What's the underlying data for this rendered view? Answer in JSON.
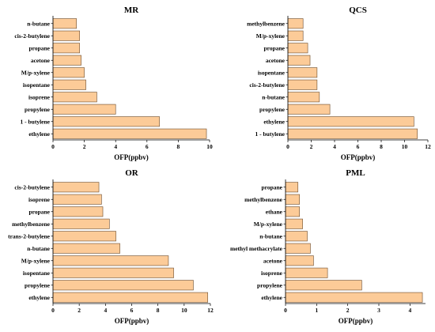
{
  "colors": {
    "bar_fill": "#FCCB98",
    "bar_stroke": "#6b4a2a",
    "axis": "#000000"
  },
  "chart_data": [
    {
      "type": "bar",
      "orientation": "horizontal",
      "title": "MR",
      "xlabel": "OFP(ppbv)",
      "ylabel": "",
      "categories": [
        "ethylene",
        "1 - butylene",
        "propylene",
        "isoprene",
        "isopentane",
        "M/p-xylene",
        "acetone",
        "propane",
        "cis-2-butylene",
        "n-butane"
      ],
      "values": [
        9.8,
        6.8,
        4.0,
        2.8,
        2.1,
        2.0,
        1.8,
        1.7,
        1.7,
        1.5
      ],
      "xlim": [
        0,
        10
      ],
      "xticks": [
        0,
        2,
        4,
        6,
        8,
        10
      ]
    },
    {
      "type": "bar",
      "orientation": "horizontal",
      "title": "QCS",
      "xlabel": "OFP(ppbv)",
      "ylabel": "",
      "categories": [
        "1 - butylene",
        "ethylene",
        "propylene",
        "n-butane",
        "cis-2-butylene",
        "isopentane",
        "acetone",
        "propane",
        "M/p-xylene",
        "methylbenzene"
      ],
      "values": [
        11.1,
        10.8,
        3.6,
        2.7,
        2.5,
        2.5,
        1.9,
        1.7,
        1.3,
        1.3
      ],
      "xlim": [
        0,
        12
      ],
      "xticks": [
        0,
        2,
        4,
        6,
        8,
        10,
        12
      ]
    },
    {
      "type": "bar",
      "orientation": "horizontal",
      "title": "OR",
      "xlabel": "OFP(ppbv)",
      "ylabel": "",
      "categories": [
        "ethylene",
        "propylene",
        "isopentane",
        "M/p-xylene",
        "n-butane",
        "trans-2-butylene",
        "methylbenzene",
        "propane",
        "isoprene",
        "cis-2-butylene"
      ],
      "values": [
        11.8,
        10.7,
        9.2,
        8.8,
        5.1,
        4.8,
        4.3,
        3.8,
        3.7,
        3.5
      ],
      "xlim": [
        0,
        12
      ],
      "xticks": [
        0,
        2,
        4,
        6,
        8,
        10,
        12
      ]
    },
    {
      "type": "bar",
      "orientation": "horizontal",
      "title": "PML",
      "xlabel": "OFP(ppbv)",
      "ylabel": "",
      "categories": [
        "ethylene",
        "propylene",
        "isoprene",
        "acetone",
        "methyl methacrylate",
        "n-butane",
        "M/p-xylene",
        "ethane",
        "methylbenzene",
        "propane"
      ],
      "values": [
        4.4,
        2.45,
        1.35,
        0.9,
        0.8,
        0.7,
        0.55,
        0.45,
        0.45,
        0.4
      ],
      "xlim": [
        0,
        4.5
      ],
      "xticks": [
        0,
        1,
        2,
        3,
        4
      ]
    }
  ]
}
